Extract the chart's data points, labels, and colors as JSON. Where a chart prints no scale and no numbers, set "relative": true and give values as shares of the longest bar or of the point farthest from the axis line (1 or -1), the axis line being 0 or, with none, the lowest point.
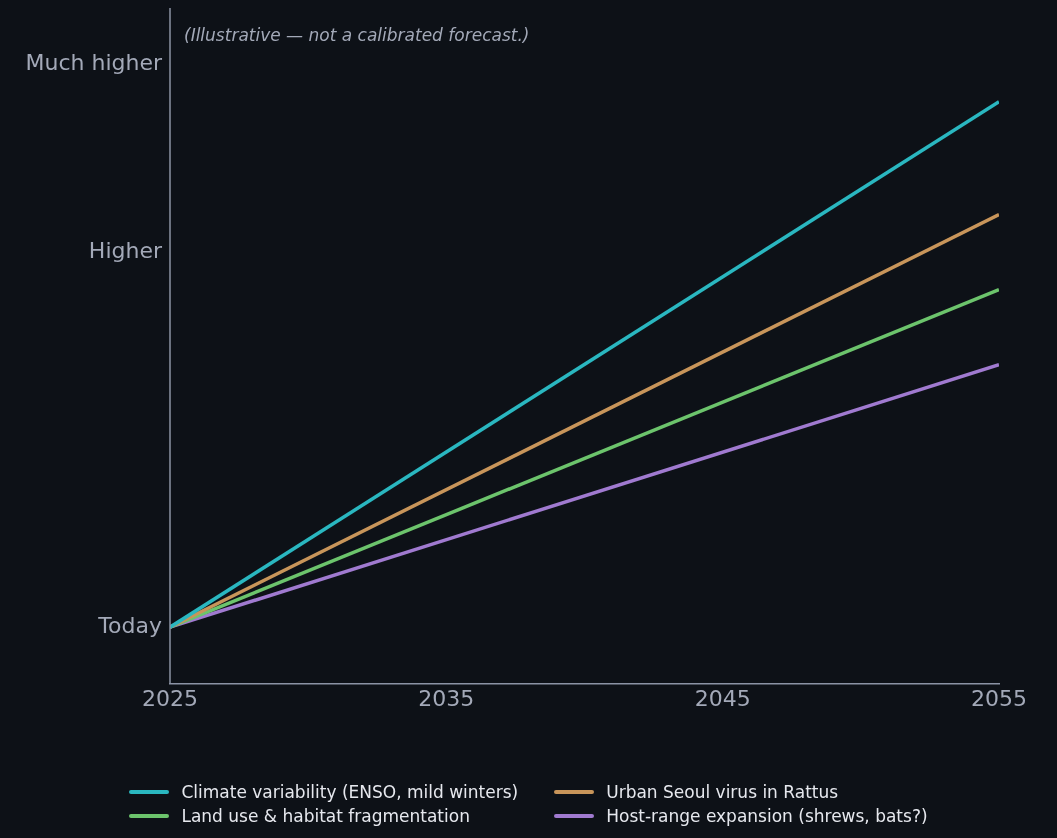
{
  "chart_data": {
    "type": "line",
    "relative": true,
    "annotations": [
      "(Illustrative — not a calibrated forecast.)",
      "Today",
      "Higher",
      "Much higher"
    ],
    "x": [
      2025,
      2055
    ],
    "series": [
      {
        "name": "Climate variability (ENSO, mild winters)",
        "color": "#2ab7c0",
        "values": [
          0.097,
          1
        ]
      },
      {
        "name": "Urban Seoul virus in Rattus",
        "color": "#c8955a",
        "values": [
          0.097,
          0.806
        ]
      },
      {
        "name": "Land use & habitat fragmentation",
        "color": "#6cc46c",
        "values": [
          0.097,
          0.677
        ]
      },
      {
        "name": "Host-range expansion (shrews, bats?)",
        "color": "#a07ad0",
        "values": [
          0.097,
          0.548
        ]
      }
    ],
    "xlim": [
      2025,
      2055
    ],
    "xticks": [
      2025,
      2035,
      2045,
      2055
    ],
    "grid": false,
    "legend": "bottom",
    "marker": "none"
  }
}
